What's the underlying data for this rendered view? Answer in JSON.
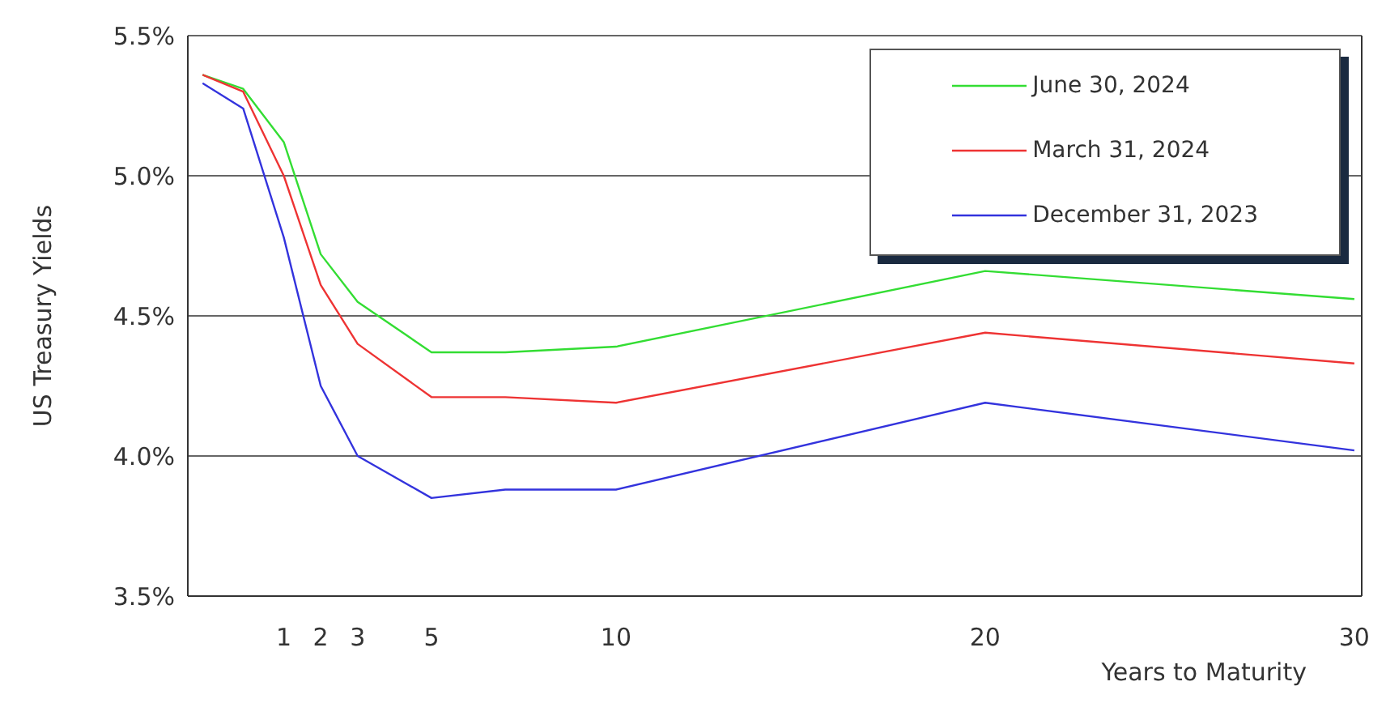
{
  "chart_data": {
    "type": "line",
    "xlabel": "Years to Maturity",
    "ylabel": "US Treasury Yields",
    "x": [
      -1.2,
      -0.1,
      1,
      2,
      3,
      5,
      7,
      10,
      20,
      30
    ],
    "series": [
      {
        "name": "June 30, 2024",
        "color": "#33dd33",
        "values": [
          5.36,
          5.31,
          5.12,
          4.72,
          4.55,
          4.37,
          4.37,
          4.39,
          4.66,
          4.56
        ]
      },
      {
        "name": "March 31, 2024",
        "color": "#ee3333",
        "values": [
          5.36,
          5.3,
          5.0,
          4.61,
          4.4,
          4.21,
          4.21,
          4.19,
          4.44,
          4.33
        ]
      },
      {
        "name": "December 31, 2023",
        "color": "#3333dd",
        "values": [
          5.33,
          5.24,
          4.78,
          4.25,
          4.0,
          3.85,
          3.88,
          3.88,
          4.19,
          4.02
        ]
      }
    ],
    "xlim": [
      -1.6,
      30.2
    ],
    "xticks": [
      1,
      2,
      3,
      5,
      10,
      20,
      30
    ],
    "ylim": [
      3.5,
      5.5
    ],
    "yticks": [
      {
        "value": 3.5,
        "label": "3.5%"
      },
      {
        "value": 4.0,
        "label": "4.0%"
      },
      {
        "value": 4.5,
        "label": "4.5%"
      },
      {
        "value": 5.0,
        "label": "5.0%"
      },
      {
        "value": 5.5,
        "label": "5.5%"
      }
    ],
    "grid": "y",
    "legend": "top right",
    "marker": "none",
    "line_style": "solid"
  }
}
